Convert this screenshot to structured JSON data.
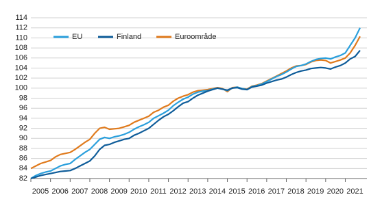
{
  "chart_data": {
    "type": "line",
    "categories": [
      "2005",
      null,
      null,
      null,
      "2006",
      null,
      null,
      null,
      "2007",
      null,
      null,
      null,
      "2008",
      null,
      null,
      null,
      "2009",
      null,
      null,
      null,
      "2010",
      null,
      null,
      null,
      "2011",
      null,
      null,
      null,
      "2012",
      null,
      null,
      null,
      "2013",
      null,
      null,
      null,
      "2014",
      null,
      null,
      null,
      "2015",
      null,
      null,
      null,
      "2016",
      null,
      null,
      null,
      "2017",
      null,
      null,
      null,
      "2018",
      null,
      null,
      null,
      "2019",
      null,
      null,
      null,
      "2020",
      null,
      null,
      null,
      "2021",
      null,
      null,
      null
    ],
    "series": [
      {
        "name": "EU",
        "color": "#2a9fdc",
        "values": [
          82.0,
          82.6,
          83.0,
          83.3,
          83.5,
          84.0,
          84.5,
          84.8,
          85.0,
          85.8,
          86.5,
          87.2,
          87.8,
          88.8,
          89.8,
          90.2,
          90.0,
          90.3,
          90.5,
          90.8,
          91.2,
          91.8,
          92.3,
          92.7,
          93.2,
          94.0,
          94.5,
          95.0,
          95.6,
          96.5,
          97.2,
          97.8,
          98.2,
          98.8,
          99.2,
          99.4,
          99.5,
          99.8,
          100.0,
          99.8,
          99.5,
          100.0,
          100.2,
          99.9,
          99.7,
          100.3,
          100.5,
          100.8,
          101.3,
          101.8,
          102.3,
          102.7,
          103.2,
          103.8,
          104.3,
          104.5,
          104.8,
          105.3,
          105.7,
          105.9,
          106.0,
          105.8,
          106.2,
          106.5,
          107.0,
          108.5,
          110.0,
          112.0
        ]
      },
      {
        "name": "Finland",
        "color": "#0e5c99",
        "values": [
          82.0,
          82.3,
          82.6,
          82.8,
          83.0,
          83.2,
          83.4,
          83.5,
          83.6,
          84.0,
          84.5,
          85.0,
          85.5,
          86.5,
          87.8,
          88.6,
          88.8,
          89.2,
          89.5,
          89.8,
          90.0,
          90.6,
          91.0,
          91.5,
          92.0,
          92.8,
          93.6,
          94.3,
          94.8,
          95.5,
          96.3,
          97.0,
          97.3,
          98.0,
          98.6,
          99.0,
          99.4,
          99.7,
          100.0,
          99.8,
          99.6,
          100.0,
          100.1,
          99.8,
          99.7,
          100.2,
          100.4,
          100.6,
          101.0,
          101.3,
          101.6,
          101.8,
          102.2,
          102.7,
          103.1,
          103.4,
          103.6,
          103.9,
          104.0,
          104.1,
          104.0,
          103.8,
          104.2,
          104.5,
          105.0,
          105.8,
          106.3,
          107.5
        ]
      },
      {
        "name": "Euroområde",
        "color": "#e07a1c",
        "values": [
          84.0,
          84.5,
          85.0,
          85.3,
          85.6,
          86.3,
          86.8,
          87.0,
          87.2,
          87.8,
          88.5,
          89.2,
          89.8,
          91.0,
          92.0,
          92.2,
          91.8,
          91.9,
          92.0,
          92.3,
          92.6,
          93.2,
          93.6,
          94.0,
          94.4,
          95.2,
          95.6,
          96.2,
          96.6,
          97.4,
          98.0,
          98.4,
          98.7,
          99.2,
          99.5,
          99.6,
          99.7,
          99.9,
          100.1,
          99.9,
          99.3,
          100.1,
          100.2,
          99.9,
          99.8,
          100.4,
          100.6,
          100.9,
          101.4,
          101.9,
          102.4,
          102.9,
          103.4,
          104.0,
          104.4,
          104.5,
          104.7,
          105.2,
          105.5,
          105.6,
          105.5,
          105.0,
          105.3,
          105.6,
          106.0,
          107.0,
          108.5,
          110.3
        ]
      }
    ],
    "ylim": [
      82,
      114
    ],
    "yticks": [
      82,
      84,
      86,
      88,
      90,
      92,
      94,
      96,
      98,
      100,
      102,
      104,
      106,
      108,
      110,
      112,
      114
    ],
    "grid": true
  }
}
